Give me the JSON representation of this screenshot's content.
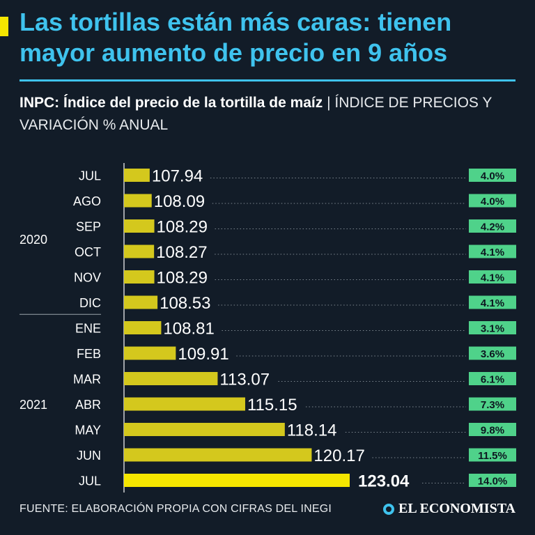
{
  "title": "Las tortillas están más caras: tienen mayor aumento de precio en 9 años",
  "subtitle_bold": "INPC: Índice del precio de la tortilla de maíz",
  "subtitle_rest": " | ÍNDICE DE PRECIOS Y VARIACIÓN % ANUAL",
  "footer": {
    "source": "FUENTE: ELABORACIÓN PROPIA CON CIFRAS DEL INEGI",
    "brand": "EL ECONOMISTA"
  },
  "colors": {
    "title": "#3fc3ee",
    "bar": "#d4c81d",
    "bar_highlight": "#f5e600",
    "badge": "#4fd28a",
    "background": "#121c28"
  },
  "chart_data": {
    "type": "bar",
    "orientation": "horizontal",
    "title": "INPC: Índice del precio de la tortilla de maíz",
    "xlabel": "",
    "ylabel": "",
    "year_groups": [
      {
        "label": "2020",
        "start": 0,
        "end": 5
      },
      {
        "label": "2021",
        "start": 6,
        "end": 12
      }
    ],
    "categories": [
      "JUL",
      "AGO",
      "SEP",
      "OCT",
      "NOV",
      "DIC",
      "ENE",
      "FEB",
      "MAR",
      "ABR",
      "MAY",
      "JUN",
      "JUL"
    ],
    "values": [
      107.94,
      108.09,
      108.29,
      108.27,
      108.29,
      108.53,
      108.81,
      109.91,
      113.07,
      115.15,
      118.14,
      120.17,
      123.04
    ],
    "value_labels": [
      "107.94",
      "108.09",
      "108.29",
      "108.27",
      "108.29",
      "108.53",
      "108.81",
      "109.91",
      "113.07",
      "115.15",
      "118.14",
      "120.17",
      "123.04"
    ],
    "annual_change_labels": [
      "4.0%",
      "4.0%",
      "4.2%",
      "4.1%",
      "4.1%",
      "4.1%",
      "3.1%",
      "3.6%",
      "6.1%",
      "7.3%",
      "9.8%",
      "11.5%",
      "14.0%"
    ],
    "highlight_index": 12,
    "axis_min": 106.0,
    "axis_max": 123.04
  }
}
